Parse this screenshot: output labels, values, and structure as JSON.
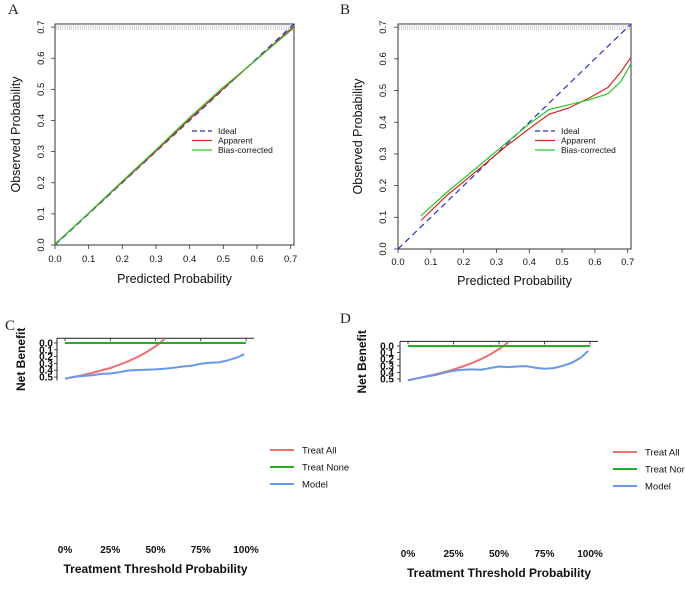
{
  "chart_data": [
    {
      "panel": "A",
      "type": "line",
      "title": "",
      "xlabel": "Predicted Probability",
      "ylabel": "Observed Probability",
      "xlim": [
        0,
        0.71
      ],
      "ylim": [
        0,
        0.71
      ],
      "xticks": [
        "0.0",
        "0.1",
        "0.2",
        "0.3",
        "0.4",
        "0.5",
        "0.6",
        "0.7"
      ],
      "yticks": [
        "0.0",
        "0.1",
        "0.2",
        "0.3",
        "0.4",
        "0.5",
        "0.6",
        "0.7"
      ],
      "legend_position": "center-right",
      "series": [
        {
          "name": "Ideal",
          "color": "#2233cc",
          "dash": true,
          "x": [
            0,
            0.71
          ],
          "y": [
            0,
            0.71
          ]
        },
        {
          "name": "Apparent",
          "color": "#dd2222",
          "dash": false,
          "x": [
            0.0,
            0.1,
            0.2,
            0.3,
            0.4,
            0.5,
            0.6,
            0.71
          ],
          "y": [
            0.003,
            0.102,
            0.202,
            0.302,
            0.404,
            0.502,
            0.598,
            0.703
          ]
        },
        {
          "name": "Bias-corrected",
          "color": "#22cc22",
          "dash": false,
          "x": [
            0.0,
            0.1,
            0.2,
            0.3,
            0.4,
            0.5,
            0.6,
            0.71
          ],
          "y": [
            0.002,
            0.103,
            0.205,
            0.306,
            0.41,
            0.507,
            0.597,
            0.698
          ]
        }
      ]
    },
    {
      "panel": "B",
      "type": "line",
      "title": "",
      "xlabel": "Predicted Probability",
      "ylabel": "Observed Probability",
      "xlim": [
        0,
        0.71
      ],
      "ylim": [
        0,
        0.71
      ],
      "xticks": [
        "0.0",
        "0.1",
        "0.2",
        "0.3",
        "0.4",
        "0.5",
        "0.6",
        "0.7"
      ],
      "yticks": [
        "0.0",
        "0.1",
        "0.2",
        "0.3",
        "0.4",
        "0.5",
        "0.6",
        "0.7"
      ],
      "legend_position": "center-right",
      "series": [
        {
          "name": "Ideal",
          "color": "#2233cc",
          "dash": true,
          "x": [
            0,
            0.71
          ],
          "y": [
            0,
            0.71
          ]
        },
        {
          "name": "Apparent",
          "color": "#dd2222",
          "dash": false,
          "x": [
            0.07,
            0.15,
            0.25,
            0.33,
            0.4,
            0.46,
            0.52,
            0.58,
            0.64,
            0.68,
            0.71
          ],
          "y": [
            0.09,
            0.17,
            0.255,
            0.325,
            0.38,
            0.425,
            0.445,
            0.475,
            0.51,
            0.56,
            0.605
          ]
        },
        {
          "name": "Bias-corrected",
          "color": "#22cc22",
          "dash": false,
          "x": [
            0.07,
            0.15,
            0.25,
            0.33,
            0.4,
            0.46,
            0.52,
            0.58,
            0.64,
            0.68,
            0.71
          ],
          "y": [
            0.105,
            0.18,
            0.265,
            0.335,
            0.395,
            0.44,
            0.455,
            0.47,
            0.49,
            0.53,
            0.585
          ]
        }
      ]
    },
    {
      "panel": "C",
      "type": "line",
      "title": "",
      "xlabel": "Treatment Threshold Probability",
      "ylabel": "Net Benefit",
      "xlim": [
        0,
        1
      ],
      "ylim": [
        -0.07,
        0.55
      ],
      "xticks": [
        "0%",
        "25%",
        "50%",
        "75%",
        "100%"
      ],
      "yticks": [
        "0.0",
        "0.1",
        "0.2",
        "0.3",
        "0.4",
        "0.5"
      ],
      "legend_position": "right",
      "series": [
        {
          "name": "Treat All",
          "color": "#f07070",
          "x": [
            0,
            0.05,
            0.1,
            0.15,
            0.2,
            0.25,
            0.3,
            0.35,
            0.4,
            0.45,
            0.5,
            0.525,
            0.55
          ],
          "y": [
            0.525,
            0.5,
            0.472,
            0.44,
            0.405,
            0.367,
            0.32,
            0.268,
            0.208,
            0.136,
            0.05,
            0.0,
            -0.06
          ]
        },
        {
          "name": "Treat None",
          "color": "#22b022",
          "x": [
            0,
            1
          ],
          "y": [
            0,
            0
          ]
        },
        {
          "name": "Model",
          "color": "#6699ee",
          "x": [
            0,
            0.05,
            0.1,
            0.15,
            0.2,
            0.25,
            0.3,
            0.35,
            0.4,
            0.45,
            0.5,
            0.55,
            0.6,
            0.65,
            0.7,
            0.75,
            0.8,
            0.85,
            0.9,
            0.95,
            0.99
          ],
          "y": [
            0.525,
            0.495,
            0.485,
            0.475,
            0.455,
            0.448,
            0.43,
            0.405,
            0.398,
            0.393,
            0.388,
            0.38,
            0.365,
            0.345,
            0.335,
            0.305,
            0.29,
            0.285,
            0.255,
            0.215,
            0.165
          ]
        }
      ]
    },
    {
      "panel": "D",
      "type": "line",
      "title": "",
      "xlabel": "Treatment Threshold Probability",
      "ylabel": "Net Benefit",
      "xlim": [
        0,
        1
      ],
      "ylim": [
        -0.07,
        0.55
      ],
      "xticks": [
        "0%",
        "25%",
        "50%",
        "75%",
        "100%"
      ],
      "yticks": [
        "0.0",
        "0.1",
        "0.2",
        "0.3",
        "0.4",
        "0.5"
      ],
      "legend_position": "right",
      "series": [
        {
          "name": "Treat All",
          "color": "#f07070",
          "x": [
            0,
            0.05,
            0.1,
            0.15,
            0.2,
            0.25,
            0.3,
            0.35,
            0.4,
            0.45,
            0.5,
            0.525,
            0.55
          ],
          "y": [
            0.52,
            0.49,
            0.46,
            0.43,
            0.395,
            0.355,
            0.31,
            0.26,
            0.2,
            0.13,
            0.045,
            0.0,
            -0.06
          ]
        },
        {
          "name": "Treat None",
          "color": "#22b022",
          "x": [
            0,
            1
          ],
          "y": [
            0,
            0
          ]
        },
        {
          "name": "Model",
          "color": "#6699ee",
          "x": [
            0,
            0.05,
            0.1,
            0.15,
            0.2,
            0.25,
            0.3,
            0.35,
            0.4,
            0.45,
            0.5,
            0.55,
            0.6,
            0.65,
            0.7,
            0.75,
            0.8,
            0.85,
            0.9,
            0.95,
            0.99
          ],
          "y": [
            0.52,
            0.49,
            0.465,
            0.44,
            0.405,
            0.375,
            0.36,
            0.355,
            0.36,
            0.335,
            0.31,
            0.32,
            0.31,
            0.305,
            0.33,
            0.345,
            0.335,
            0.3,
            0.255,
            0.175,
            0.075
          ]
        }
      ]
    }
  ]
}
